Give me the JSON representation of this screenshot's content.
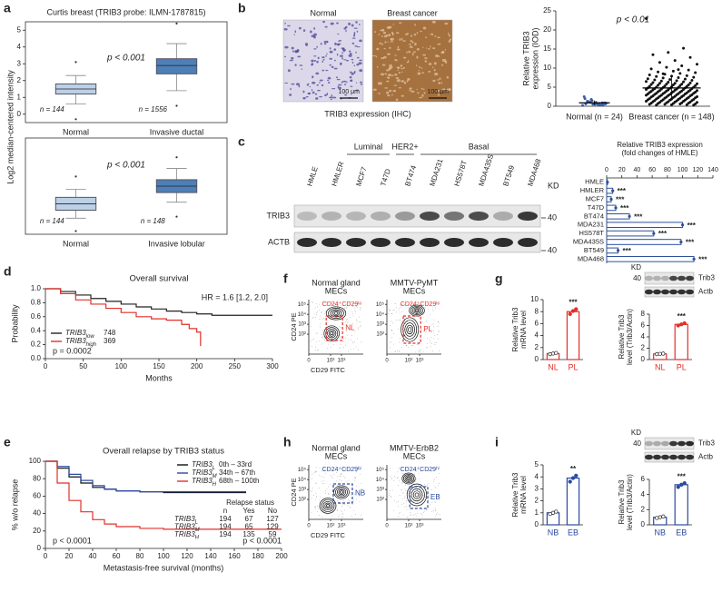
{
  "chart_data": [
    {
      "type": "box",
      "label": "a",
      "title": "Curtis breast (TRIB3 probe: ILMN-1787815)",
      "ylabel": "Log2 median-centered intensity",
      "p_value": "p < 0.001",
      "categories": [
        "Normal",
        "Invasive ductal"
      ],
      "n_labels": [
        "n = 144",
        "n = 1556"
      ],
      "colors": [
        "#bcd0e6",
        "#4e7fb5"
      ],
      "ylim": [
        -0.5,
        5.5
      ],
      "yticks": [
        0,
        1,
        2,
        3,
        4,
        5
      ],
      "boxes": [
        {
          "min": 0.6,
          "q1": 1.2,
          "median": 1.5,
          "q3": 1.8,
          "max": 2.3,
          "outliers": [
            3.1,
            -0.3
          ]
        },
        {
          "min": 1.4,
          "q1": 2.4,
          "median": 2.9,
          "q3": 3.3,
          "max": 4.2,
          "outliers": [
            5.4,
            0.5
          ]
        }
      ]
    },
    {
      "type": "box",
      "p_value": "p < 0.001",
      "categories": [
        "Normal",
        "Invasive lobular"
      ],
      "n_labels": [
        "n = 144",
        "n = 148"
      ],
      "colors": [
        "#bcd0e6",
        "#4e7fb5"
      ],
      "ylim": [
        -0.5,
        5.5
      ],
      "boxes": [
        {
          "min": 0.5,
          "q1": 1.0,
          "median": 1.4,
          "q3": 1.8,
          "max": 2.3,
          "outliers": [
            3.1,
            -0.3
          ]
        },
        {
          "min": 1.5,
          "q1": 2.1,
          "median": 2.5,
          "q3": 2.9,
          "max": 3.6,
          "outliers": [
            4.3,
            0.6
          ]
        }
      ]
    },
    {
      "type": "ihc",
      "label": "b",
      "panels": [
        "Normal",
        "Breast cancer"
      ],
      "scale_bar": "100 μm",
      "caption": "TRIB3 expression (IHC)",
      "colors": [
        "#dcd8ea",
        "#a5713f"
      ],
      "texture_colors": [
        "#4f4a96",
        "#e2c29c"
      ]
    },
    {
      "type": "dot",
      "ylabel": [
        "Relative TRIB3",
        "expression (IOD)"
      ],
      "p_value": "p < 0.01",
      "categories": [
        "Normal (n = 24)",
        "Breast cancer (n = 148)"
      ],
      "colors": [
        "#3b5ba5",
        "#111111"
      ],
      "ylim": [
        0,
        25
      ],
      "yticks": [
        0,
        5,
        10,
        15,
        20,
        25
      ],
      "values": [
        [
          0.2,
          0.4,
          0.5,
          0.6,
          0.3,
          1.0,
          1.2,
          0.8,
          0.7,
          1.5,
          2.0,
          0.9,
          0.5,
          1.1,
          0.6,
          0.4,
          1.8,
          2.5,
          0.3,
          0.7,
          1.3,
          0.9,
          0.6,
          1.0
        ],
        [
          23.0,
          15.2,
          14.1,
          13.5,
          12.8,
          12.0,
          11.5,
          11.0,
          10.6,
          10.2,
          9.8,
          9.5,
          9.2,
          9.0,
          8.8,
          8.6,
          8.4,
          8.2,
          8.0,
          7.9,
          7.8,
          7.6,
          7.5,
          7.4,
          7.2,
          7.1,
          7.0,
          6.9,
          6.8,
          6.7,
          6.6,
          6.5,
          6.4,
          6.3,
          6.2,
          6.1,
          6.0,
          6.0,
          5.9,
          5.8,
          5.8,
          5.7,
          5.6,
          5.6,
          5.5,
          5.4,
          5.4,
          5.3,
          5.2,
          5.2,
          5.1,
          5.0,
          5.0,
          4.9,
          4.9,
          4.8,
          4.8,
          4.7,
          4.6,
          4.6,
          4.5,
          4.5,
          4.4,
          4.4,
          4.3,
          4.3,
          4.2,
          4.2,
          4.1,
          4.1,
          4.0,
          4.0,
          3.9,
          3.9,
          3.8,
          3.8,
          3.7,
          3.7,
          3.6,
          3.6,
          3.5,
          3.5,
          3.4,
          3.4,
          3.3,
          3.3,
          3.2,
          3.2,
          3.1,
          3.1,
          3.0,
          3.0,
          2.9,
          2.9,
          2.8,
          2.8,
          2.7,
          2.7,
          2.6,
          2.6,
          2.5,
          2.5,
          2.4,
          2.4,
          2.3,
          2.3,
          2.2,
          2.2,
          2.1,
          2.1,
          2.0,
          2.0,
          1.9,
          1.9,
          1.8,
          1.8,
          1.7,
          1.7,
          1.6,
          1.6,
          1.5,
          1.5,
          1.4,
          1.4,
          1.3,
          1.3,
          1.2,
          1.2,
          1.1,
          1.1,
          1.0,
          1.0,
          0.9,
          0.9,
          0.8,
          0.8,
          0.7,
          0.7,
          0.6,
          0.6,
          0.5,
          0.5,
          0.4,
          0.4,
          0.3,
          0.3,
          9.6,
          8.5
        ]
      ],
      "means": [
        0.9,
        4.8
      ],
      "sd": [
        0.6,
        3.3
      ]
    },
    {
      "type": "blot",
      "label": "c",
      "lanes": [
        "HMLE",
        "HMLER",
        "MCF7",
        "T47D",
        "BT474",
        "MDA231",
        "HS578T",
        "MDA435S",
        "BT549",
        "MDA468"
      ],
      "lane_groups": [
        null,
        null,
        "Luminal",
        "Luminal",
        "HER2+",
        "Basal",
        "Basal",
        "Basal",
        "Basal",
        "Basal"
      ],
      "rows": [
        "TRIB3",
        "ACTB"
      ],
      "kd_label": "KD",
      "marker": "40"
    },
    {
      "type": "hbar",
      "title": [
        "Relative TRIB3 expression",
        "(fold changes of HMLE)"
      ],
      "categories": [
        "HMLE",
        "HMLER",
        "MCF7",
        "T47D",
        "BT474",
        "MDA231",
        "HS578T",
        "MDA435S",
        "BT549",
        "MDA468"
      ],
      "values": [
        1,
        8,
        6,
        12,
        30,
        100,
        62,
        98,
        15,
        115
      ],
      "sig": [
        null,
        "***",
        "***",
        "***",
        "***",
        "***",
        "***",
        "***",
        "***",
        "***"
      ],
      "color": "#2b4f9e",
      "xlim": [
        0,
        140
      ],
      "xticks": [
        0,
        20,
        40,
        60,
        80,
        100,
        120,
        140
      ]
    },
    {
      "type": "km",
      "label": "d",
      "title": "Overall survival",
      "hr": "HR = 1.6 [1.2, 2.0]",
      "xlabel": "Months",
      "ylabel": "Probability",
      "xlim": [
        0,
        300
      ],
      "ylim": [
        0,
        1
      ],
      "xticks": [
        0,
        50,
        100,
        150,
        200,
        250,
        300
      ],
      "yticks": [
        {
          "value": 0,
          "label": "0.0"
        },
        0.2,
        0.4,
        0.6,
        0.8,
        {
          "value": 1,
          "label": "1.0"
        }
      ],
      "legend": "bottom-left",
      "p_values": [
        "p = 0.0002"
      ],
      "series": [
        {
          "name": "TRIB3",
          "subscript": "low",
          "n": 748,
          "color": "#222222",
          "x": [
            0,
            20,
            40,
            60,
            80,
            100,
            120,
            140,
            160,
            180,
            200,
            220,
            250,
            300
          ],
          "y": [
            1,
            0.96,
            0.91,
            0.86,
            0.82,
            0.78,
            0.74,
            0.71,
            0.68,
            0.66,
            0.64,
            0.62,
            0.62,
            0.62
          ]
        },
        {
          "name": "TRIB3",
          "subscript": "high",
          "n": 369,
          "color": "#e0302a",
          "x": [
            0,
            20,
            40,
            60,
            80,
            100,
            120,
            140,
            160,
            180,
            190,
            200,
            205
          ],
          "y": [
            1,
            0.93,
            0.84,
            0.78,
            0.72,
            0.66,
            0.6,
            0.57,
            0.55,
            0.49,
            0.43,
            0.38,
            0.18
          ]
        }
      ]
    },
    {
      "type": "km",
      "label": "e",
      "title": "Overall relapse by TRIB3 status",
      "xlabel": "Metastasis-free survival (months)",
      "ylabel": "% w/o relapse",
      "xlim": [
        0,
        200
      ],
      "ylim": [
        0,
        100
      ],
      "xticks": [
        0,
        20,
        40,
        60,
        80,
        100,
        120,
        140,
        160,
        180,
        200
      ],
      "yticks": [
        0,
        20,
        40,
        60,
        80,
        100
      ],
      "legend": "top-right",
      "p_values": [
        "p < 0.0001",
        "p < 0.0001"
      ],
      "series": [
        {
          "name": "TRIB3",
          "subscript": "L",
          "range": "0th – 33rd",
          "color": "#111111",
          "x": [
            0,
            10,
            20,
            30,
            40,
            50,
            60,
            80,
            100,
            120,
            150,
            170
          ],
          "y": [
            100,
            92,
            82,
            75,
            70,
            68,
            66,
            65,
            64,
            64,
            64,
            64
          ]
        },
        {
          "name": "TRIB3",
          "subscript": "M",
          "range": "34th – 67th",
          "color": "#2b4aa0",
          "x": [
            0,
            10,
            20,
            30,
            40,
            50,
            60,
            80,
            100,
            120,
            150,
            170
          ],
          "y": [
            100,
            94,
            85,
            78,
            72,
            68,
            66,
            65,
            65,
            65,
            65,
            65
          ]
        },
        {
          "name": "TRIB3",
          "subscript": "H",
          "range": "68th – 100th",
          "color": "#e0302a",
          "x": [
            0,
            10,
            20,
            30,
            40,
            50,
            60,
            80,
            100,
            120,
            150,
            200
          ],
          "y": [
            100,
            75,
            55,
            42,
            33,
            28,
            25,
            23,
            22,
            22,
            22,
            22
          ]
        }
      ],
      "table": {
        "title": "Relapse status",
        "columns": [
          "n",
          "Yes",
          "No"
        ],
        "rows": [
          [
            194,
            67,
            127
          ],
          [
            194,
            65,
            129
          ],
          [
            194,
            135,
            59
          ]
        ]
      }
    },
    {
      "type": "flow",
      "label": "f",
      "panels": [
        {
          "title": [
            "Normal gland",
            "MECs"
          ],
          "gate": "NL"
        },
        {
          "title": [
            "MMTV-PyMT",
            "MECs"
          ],
          "gate": "PL"
        }
      ],
      "gate_label": "CD24⁺CD29ˡᵒ",
      "xlabel": "CD29 FITC",
      "ylabel": "CD24 PE",
      "color": "#e0302a",
      "log": true,
      "xlim": [
        0,
        100000
      ],
      "ylim": [
        0,
        300000
      ],
      "xticks": [
        0,
        {
          "value": 100,
          "label": "10²"
        },
        {
          "value": 1000,
          "label": "10³"
        }
      ],
      "yticks": [
        {
          "value": 100,
          "label": "10²"
        },
        {
          "value": 1000,
          "label": "10³"
        },
        {
          "value": 10000,
          "label": "10⁴"
        },
        {
          "value": 100000,
          "label": "10⁵"
        }
      ]
    },
    {
      "type": "bar",
      "label": "g",
      "ylabel": [
        "Relative Trib3",
        "mRNA level"
      ],
      "categories": [
        "NL",
        "PL"
      ],
      "values": [
        1,
        8
      ],
      "points": [
        [
          0.9,
          1.0,
          1.1
        ],
        [
          7.6,
          8.1,
          8.4
        ]
      ],
      "sig": [
        null,
        "***"
      ],
      "color": "#e0302a",
      "ylim": [
        0,
        10
      ],
      "yticks": [
        0,
        2,
        4,
        6,
        8,
        10
      ]
    },
    {
      "type": "wbbar",
      "kd_label": "KD",
      "marker": "40",
      "rows": [
        "Trib3",
        "Actb"
      ],
      "ylabel": [
        "Relative Trib3",
        "level (Trib3/Actin)"
      ],
      "categories": [
        "NL",
        "PL"
      ],
      "values": [
        1,
        6.2
      ],
      "points": [
        [
          0.95,
          1.0,
          1.05
        ],
        [
          6.0,
          6.2,
          6.4
        ]
      ],
      "sig": [
        null,
        "***"
      ],
      "color": "#e0302a",
      "ylim": [
        0,
        8
      ],
      "yticks": [
        0,
        2,
        4,
        6,
        8
      ]
    },
    {
      "type": "flow",
      "label": "h",
      "panels": [
        {
          "title": [
            "Normal gland",
            "MECs"
          ],
          "gate": "NB"
        },
        {
          "title": [
            "MMTV-ErbB2",
            "MECs"
          ],
          "gate": "EB"
        }
      ],
      "gate_label": "CD24⁺CD29ʰⁱ",
      "xlabel": "CD29 FITC",
      "ylabel": "CD24 PE",
      "color": "#2b4aa0",
      "log": true,
      "xlim": [
        0,
        100000
      ],
      "ylim": [
        0,
        300000
      ],
      "xticks": [
        0,
        {
          "value": 100,
          "label": "10²"
        },
        {
          "value": 1000,
          "label": "10³"
        }
      ],
      "yticks": [
        {
          "value": 100,
          "label": "10²"
        },
        {
          "value": 1000,
          "label": "10³"
        },
        {
          "value": 10000,
          "label": "10⁴"
        },
        {
          "value": 100000,
          "label": "10⁵"
        }
      ]
    },
    {
      "type": "bar",
      "label": "i",
      "ylabel": [
        "Relative Trib3",
        "mRNA level"
      ],
      "categories": [
        "NB",
        "EB"
      ],
      "values": [
        1,
        3.9
      ],
      "points": [
        [
          0.9,
          1.0,
          1.1
        ],
        [
          3.6,
          3.9,
          4.1
        ]
      ],
      "sig": [
        null,
        "**"
      ],
      "color": "#2b4aa0",
      "ylim": [
        0,
        5
      ],
      "yticks": [
        0,
        1,
        2,
        3,
        4,
        5
      ]
    },
    {
      "type": "wbbar",
      "kd_label": "KD",
      "marker": "40",
      "rows": [
        "Trib3",
        "Actb"
      ],
      "ylabel": [
        "Relative Trib3",
        "level (Trib3/Actin)"
      ],
      "categories": [
        "NB",
        "EB"
      ],
      "values": [
        1,
        5.3
      ],
      "points": [
        [
          0.9,
          1.0,
          1.1
        ],
        [
          5.0,
          5.3,
          5.5
        ]
      ],
      "sig": [
        null,
        "***"
      ],
      "color": "#2b4aa0",
      "ylim": [
        0,
        6
      ],
      "yticks": [
        0,
        2,
        4,
        6
      ]
    }
  ]
}
